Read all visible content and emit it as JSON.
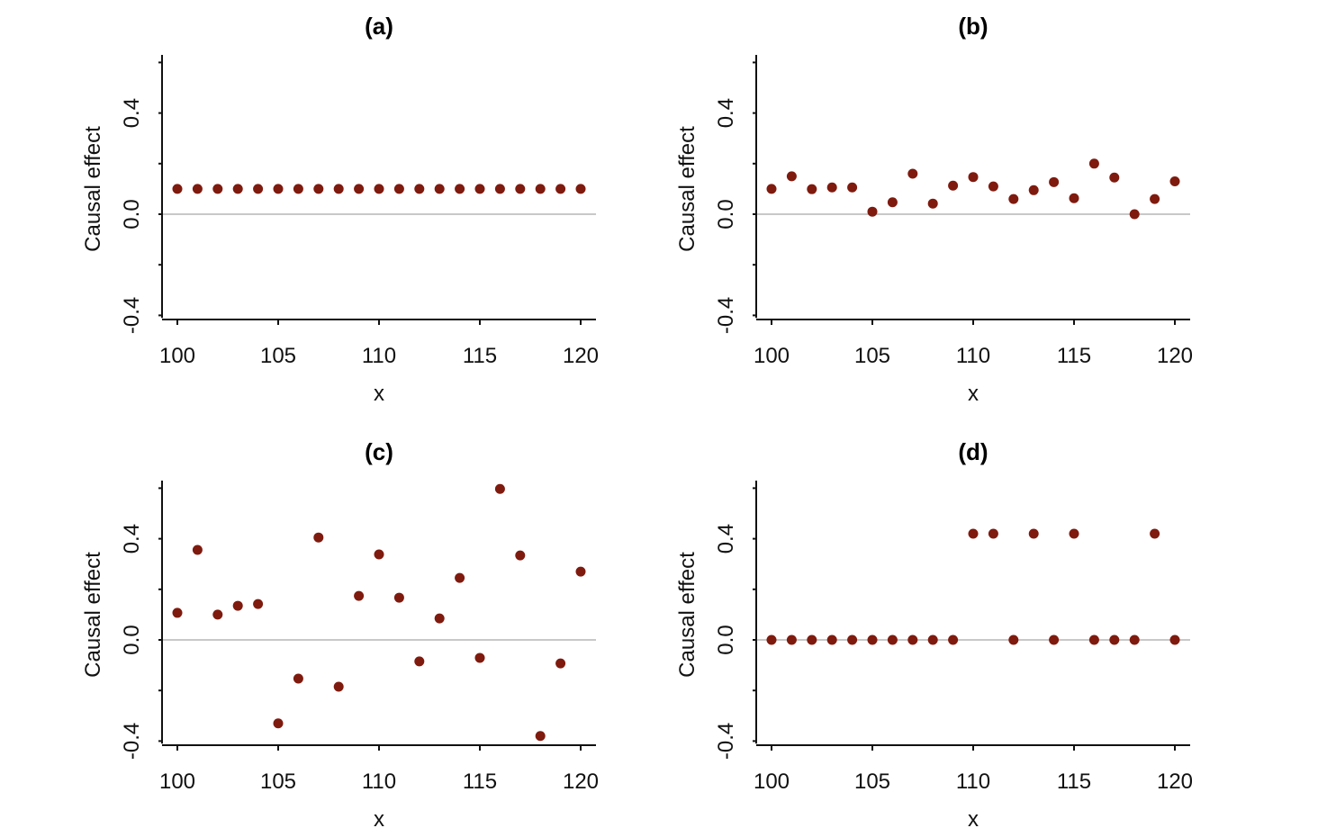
{
  "chart_data": [
    {
      "type": "scatter",
      "title": "(a)",
      "xlabel": "x",
      "ylabel": "Causal effect",
      "xlim": [
        100,
        120
      ],
      "ylim": [
        -0.41,
        0.63
      ],
      "xticks": [
        "100",
        "105",
        "110",
        "115",
        "120"
      ],
      "yticks": [
        "-0.4",
        "0.0",
        "0.4"
      ],
      "reference_line_y": 0,
      "x": [
        100,
        101,
        102,
        103,
        104,
        105,
        106,
        107,
        108,
        109,
        110,
        111,
        112,
        113,
        114,
        115,
        116,
        117,
        118,
        119,
        120
      ],
      "y": [
        0.1,
        0.1,
        0.1,
        0.1,
        0.1,
        0.1,
        0.1,
        0.1,
        0.1,
        0.1,
        0.1,
        0.1,
        0.1,
        0.1,
        0.1,
        0.1,
        0.1,
        0.1,
        0.1,
        0.1,
        0.1
      ]
    },
    {
      "type": "scatter",
      "title": "(b)",
      "xlabel": "x",
      "ylabel": "Causal effect",
      "xlim": [
        100,
        120
      ],
      "ylim": [
        -0.41,
        0.63
      ],
      "xticks": [
        "100",
        "105",
        "110",
        "115",
        "120"
      ],
      "yticks": [
        "-0.4",
        "0.0",
        "0.4"
      ],
      "reference_line_y": 0,
      "x": [
        100,
        101,
        102,
        103,
        104,
        105,
        106,
        107,
        108,
        109,
        110,
        111,
        112,
        113,
        114,
        115,
        116,
        117,
        118,
        119,
        120
      ],
      "y": [
        0.1,
        0.15,
        0.099,
        0.106,
        0.106,
        0.01,
        0.047,
        0.16,
        0.042,
        0.113,
        0.147,
        0.11,
        0.06,
        0.095,
        0.127,
        0.063,
        0.2,
        0.145,
        0.0,
        0.06,
        0.13
      ]
    },
    {
      "type": "scatter",
      "title": "(c)",
      "xlabel": "x",
      "ylabel": "Causal effect",
      "xlim": [
        100,
        120
      ],
      "ylim": [
        -0.41,
        0.63
      ],
      "xticks": [
        "100",
        "105",
        "110",
        "115",
        "120"
      ],
      "yticks": [
        "-0.4",
        "0.0",
        "0.4"
      ],
      "reference_line_y": 0,
      "x": [
        100,
        101,
        102,
        103,
        104,
        105,
        106,
        107,
        108,
        109,
        110,
        111,
        112,
        113,
        114,
        115,
        116,
        117,
        118,
        119,
        120
      ],
      "y": [
        0.107,
        0.356,
        0.1,
        0.135,
        0.142,
        -0.33,
        -0.153,
        0.405,
        -0.185,
        0.174,
        0.338,
        0.167,
        -0.085,
        0.085,
        0.245,
        -0.071,
        0.597,
        0.334,
        -0.38,
        -0.093,
        0.27
      ]
    },
    {
      "type": "scatter",
      "title": "(d)",
      "xlabel": "x",
      "ylabel": "Causal effect",
      "xlim": [
        100,
        120
      ],
      "ylim": [
        -0.41,
        0.63
      ],
      "xticks": [
        "100",
        "105",
        "110",
        "115",
        "120"
      ],
      "yticks": [
        "-0.4",
        "0.0",
        "0.4"
      ],
      "reference_line_y": 0,
      "x": [
        100,
        101,
        102,
        103,
        104,
        105,
        106,
        107,
        108,
        109,
        110,
        111,
        112,
        113,
        114,
        115,
        116,
        117,
        118,
        119,
        120
      ],
      "y": [
        0,
        0,
        0,
        0,
        0,
        0,
        0,
        0,
        0,
        0,
        0.42,
        0.42,
        0,
        0.42,
        0,
        0.42,
        0,
        0,
        0,
        0.42,
        0
      ]
    }
  ],
  "colors": {
    "points": "#7f1a0e",
    "axis": "#111111",
    "reference_line": "#c8c8c8"
  }
}
